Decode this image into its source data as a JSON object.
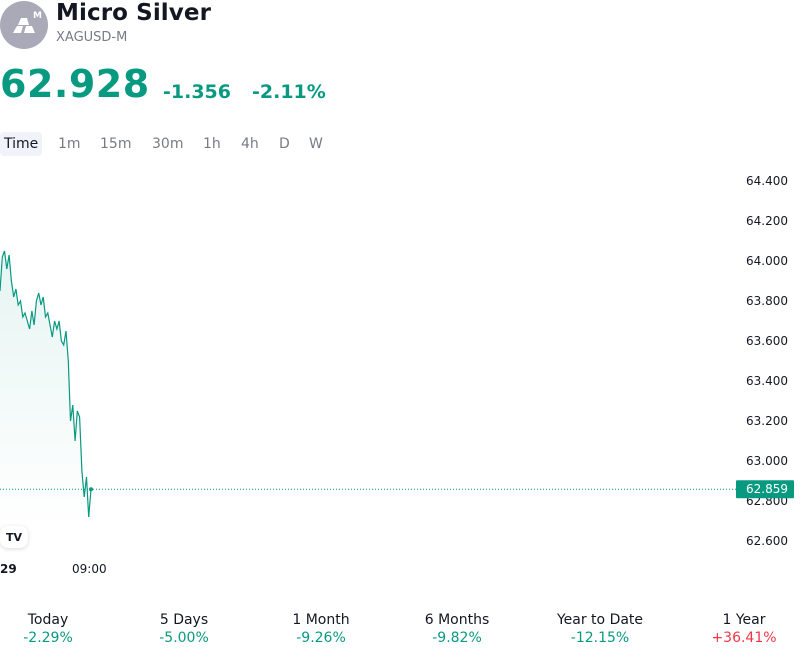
{
  "header": {
    "title": "Micro Silver",
    "symbol": "XAGUSD-M",
    "logo_badge": "M",
    "icon": "silver-bars-icon"
  },
  "quote": {
    "price": "62.928",
    "change": "-1.356",
    "change_percent": "-2.11%",
    "color": "#089981"
  },
  "intervals": [
    {
      "label": "Time",
      "active": true
    },
    {
      "label": "1m"
    },
    {
      "label": "15m"
    },
    {
      "label": "30m"
    },
    {
      "label": "1h"
    },
    {
      "label": "4h"
    },
    {
      "label": "D"
    },
    {
      "label": "W"
    }
  ],
  "chart_data": {
    "type": "area",
    "series_color": "#089981",
    "y_ticks": [
      "64.400",
      "64.200",
      "64.000",
      "63.800",
      "63.600",
      "63.400",
      "63.200",
      "63.000",
      "62.800",
      "62.600"
    ],
    "y_tick_values": [
      64.4,
      64.2,
      64.0,
      63.8,
      63.6,
      63.4,
      63.2,
      63.0,
      62.8,
      62.6
    ],
    "x_ticks": [
      "29",
      "09:00"
    ],
    "last_price_label": "62.859",
    "last_price": 62.859,
    "values": [
      63.85,
      64.02,
      64.05,
      63.96,
      64.03,
      63.9,
      63.82,
      63.86,
      63.78,
      63.8,
      63.72,
      63.74,
      63.7,
      63.66,
      63.75,
      63.68,
      63.8,
      63.84,
      63.78,
      63.82,
      63.72,
      63.74,
      63.68,
      63.62,
      63.7,
      63.66,
      63.7,
      63.6,
      63.58,
      63.65,
      63.5,
      63.2,
      63.28,
      63.1,
      63.25,
      63.22,
      62.95,
      62.82,
      62.92,
      62.72,
      62.859
    ]
  },
  "performance": [
    {
      "label": "Today",
      "value": "-2.29%",
      "trend": "neg"
    },
    {
      "label": "5 Days",
      "value": "-5.00%",
      "trend": "neg"
    },
    {
      "label": "1 Month",
      "value": "-9.26%",
      "trend": "neg"
    },
    {
      "label": "6 Months",
      "value": "-9.82%",
      "trend": "neg"
    },
    {
      "label": "Year to Date",
      "value": "-12.15%",
      "trend": "neg"
    },
    {
      "label": "1 Year",
      "value": "+36.41%",
      "trend": "pos"
    }
  ],
  "watermark": "TV"
}
